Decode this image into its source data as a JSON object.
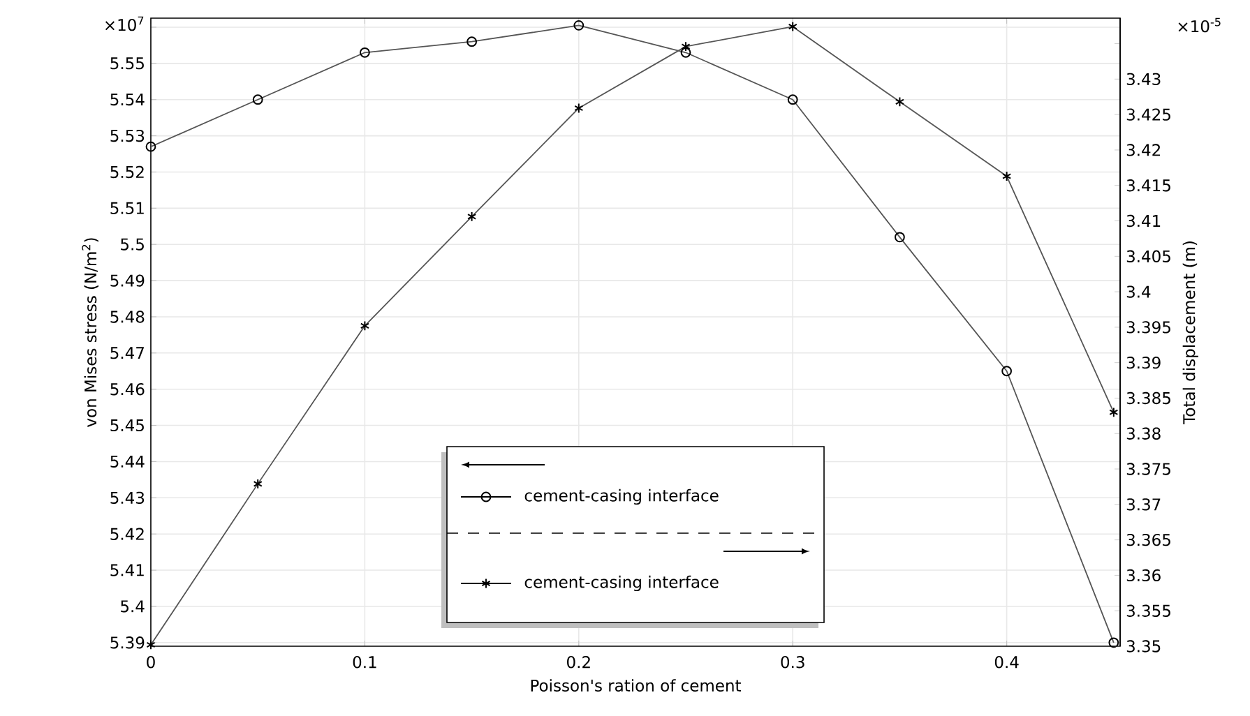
{
  "chart_data": {
    "type": "line",
    "xlabel": "Poisson's ration of cement",
    "ylabel": "von Mises stress (N/m$^{2}$)",
    "y2label": "Total displacement (m)",
    "x": [
      0,
      0.05,
      0.1,
      0.15,
      0.2,
      0.25,
      0.3,
      0.35,
      0.4,
      0.45
    ],
    "series": [
      {
        "name": "cement-casing interface",
        "color": "#555555",
        "axis": "y",
        "marker": "circle",
        "values": [
          5.527,
          5.54,
          5.553,
          5.556,
          5.5605,
          5.553,
          5.54,
          5.502,
          5.465,
          5.39
        ]
      },
      {
        "name": "cement-casing interface",
        "color": "#555555",
        "axis": "y2",
        "marker": "cross",
        "values": [
          3.3502,
          3.3729,
          3.3952,
          3.4106,
          3.4259,
          3.4346,
          3.4374,
          3.4268,
          3.4163,
          3.383
        ]
      }
    ],
    "xlim": [
      0,
      0.453
    ],
    "xticks": [
      0,
      0.1,
      0.2,
      0.3,
      0.4
    ],
    "ylim": [
      5.389,
      5.5625
    ],
    "yticks": [
      5.39,
      5.4,
      5.41,
      5.42,
      5.43,
      5.44,
      5.45,
      5.46,
      5.47,
      5.48,
      5.49,
      5.5,
      5.51,
      5.52,
      5.53,
      5.54,
      5.55,
      {
        "value": 5.56,
        "label": null
      }
    ],
    "y2lim": [
      3.35,
      3.4386
    ],
    "y2ticks": [
      3.35,
      3.355,
      3.36,
      3.365,
      3.37,
      3.375,
      3.38,
      3.385,
      3.39,
      3.395,
      3.4,
      3.405,
      3.41,
      3.415,
      3.42,
      3.425,
      3.43,
      {
        "value": 3.435,
        "label": null
      }
    ],
    "annotations": [
      "×10$^{7}$",
      "×10$^{-5}$"
    ],
    "grid": true,
    "legend": "bottom",
    "line_style": "solid"
  }
}
